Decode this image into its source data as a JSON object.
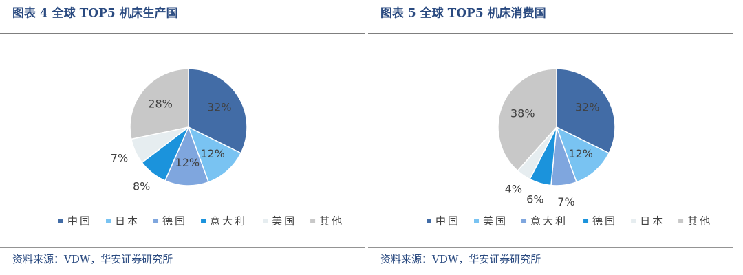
{
  "chart_data": [
    {
      "type": "pie",
      "title": "图表 4 全球 TOP5 机床生产国",
      "categories": [
        "中国",
        "日本",
        "德国",
        "意大利",
        "美国",
        "其他"
      ],
      "values": [
        32,
        12,
        12,
        8,
        7,
        28
      ],
      "value_labels": [
        "32%",
        "12%",
        "12%",
        "8%",
        "7%",
        "28%"
      ],
      "colors": [
        "#426ca6",
        "#79c3f2",
        "#7fa6de",
        "#1b93dc",
        "#e6edf0",
        "#c8c8c8"
      ],
      "source": "资料来源：VDW，华安证券研究所"
    },
    {
      "type": "pie",
      "title": "图表 5 全球 TOP5 机床消费国",
      "categories": [
        "中国",
        "美国",
        "意大利",
        "德国",
        "日本",
        "其他"
      ],
      "values": [
        32,
        12,
        7,
        6,
        4,
        38
      ],
      "value_labels": [
        "32%",
        "12%",
        "7%",
        "6%",
        "4%",
        "38%"
      ],
      "colors": [
        "#426ca6",
        "#79c3f2",
        "#7fa6de",
        "#1b93dc",
        "#e6edf0",
        "#c8c8c8"
      ],
      "source": "资料来源：VDW，华安证券研究所"
    }
  ]
}
